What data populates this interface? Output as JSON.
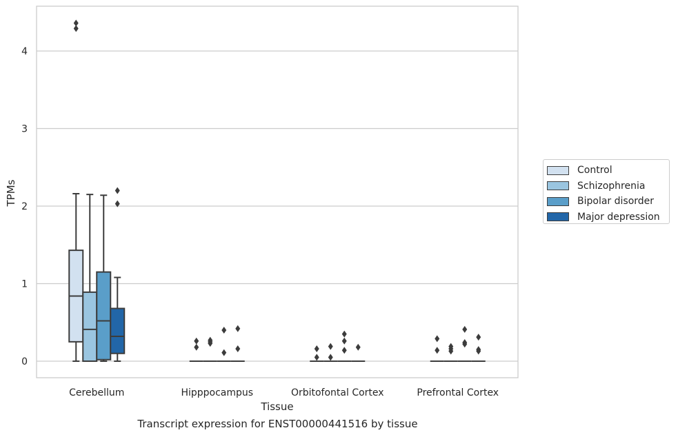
{
  "caption": "Transcript expression for ENST00000441516 by tissue",
  "chart_data": {
    "type": "box",
    "title": "",
    "xlabel": "Tissue",
    "ylabel": "TPMs",
    "ylim": [
      -0.2,
      4.6
    ],
    "yticks": [
      0,
      1,
      2,
      3,
      4
    ],
    "grid": "horizontal",
    "legend_position": "right",
    "categories": [
      "Cerebellum",
      "Hipppocampus",
      "Orbitofontal Cortex",
      "Prefrontal Cortex"
    ],
    "series": [
      {
        "name": "Control",
        "color": "#d2e1f0",
        "boxes": [
          {
            "whislo": 0.0,
            "q1": 0.25,
            "med": 0.84,
            "q3": 1.43,
            "whishi": 2.16,
            "fliers": [
              4.29,
              4.36
            ]
          },
          {
            "whislo": 0.0,
            "q1": 0.0,
            "med": 0.0,
            "q3": 0.0,
            "whishi": 0.0,
            "fliers": [
              0.18,
              0.26
            ]
          },
          {
            "whislo": 0.0,
            "q1": 0.0,
            "med": 0.0,
            "q3": 0.0,
            "whishi": 0.0,
            "fliers": [
              0.05,
              0.16
            ]
          },
          {
            "whislo": 0.0,
            "q1": 0.0,
            "med": 0.0,
            "q3": 0.0,
            "whishi": 0.0,
            "fliers": [
              0.14,
              0.29
            ]
          }
        ]
      },
      {
        "name": "Schizophrenia",
        "color": "#9ac5e0",
        "boxes": [
          {
            "whislo": 0.0,
            "q1": 0.0,
            "med": 0.41,
            "q3": 0.89,
            "whishi": 2.15,
            "fliers": []
          },
          {
            "whislo": 0.0,
            "q1": 0.0,
            "med": 0.0,
            "q3": 0.0,
            "whishi": 0.0,
            "fliers": [
              0.23,
              0.25,
              0.27
            ]
          },
          {
            "whislo": 0.0,
            "q1": 0.0,
            "med": 0.0,
            "q3": 0.0,
            "whishi": 0.0,
            "fliers": [
              0.05,
              0.19
            ]
          },
          {
            "whislo": 0.0,
            "q1": 0.0,
            "med": 0.0,
            "q3": 0.0,
            "whishi": 0.0,
            "fliers": [
              0.13,
              0.16,
              0.19
            ]
          }
        ]
      },
      {
        "name": "Bipolar disorder",
        "color": "#5a9ec9",
        "boxes": [
          {
            "whislo": 0.0,
            "q1": 0.02,
            "med": 0.52,
            "q3": 1.15,
            "whishi": 2.14,
            "fliers": []
          },
          {
            "whislo": 0.0,
            "q1": 0.0,
            "med": 0.0,
            "q3": 0.0,
            "whishi": 0.0,
            "fliers": [
              0.11,
              0.4
            ]
          },
          {
            "whislo": 0.0,
            "q1": 0.0,
            "med": 0.0,
            "q3": 0.0,
            "whishi": 0.0,
            "fliers": [
              0.14,
              0.26,
              0.35
            ]
          },
          {
            "whislo": 0.0,
            "q1": 0.0,
            "med": 0.0,
            "q3": 0.0,
            "whishi": 0.0,
            "fliers": [
              0.22,
              0.24,
              0.41
            ]
          }
        ]
      },
      {
        "name": "Major depression",
        "color": "#2266a8",
        "boxes": [
          {
            "whislo": 0.0,
            "q1": 0.1,
            "med": 0.32,
            "q3": 0.68,
            "whishi": 1.08,
            "fliers": [
              2.03,
              2.2
            ]
          },
          {
            "whislo": 0.0,
            "q1": 0.0,
            "med": 0.0,
            "q3": 0.0,
            "whishi": 0.0,
            "fliers": [
              0.16,
              0.42
            ]
          },
          {
            "whislo": 0.0,
            "q1": 0.0,
            "med": 0.0,
            "q3": 0.0,
            "whishi": 0.0,
            "fliers": [
              0.18
            ]
          },
          {
            "whislo": 0.0,
            "q1": 0.0,
            "med": 0.0,
            "q3": 0.0,
            "whishi": 0.0,
            "fliers": [
              0.13,
              0.15,
              0.31
            ]
          }
        ]
      }
    ]
  }
}
